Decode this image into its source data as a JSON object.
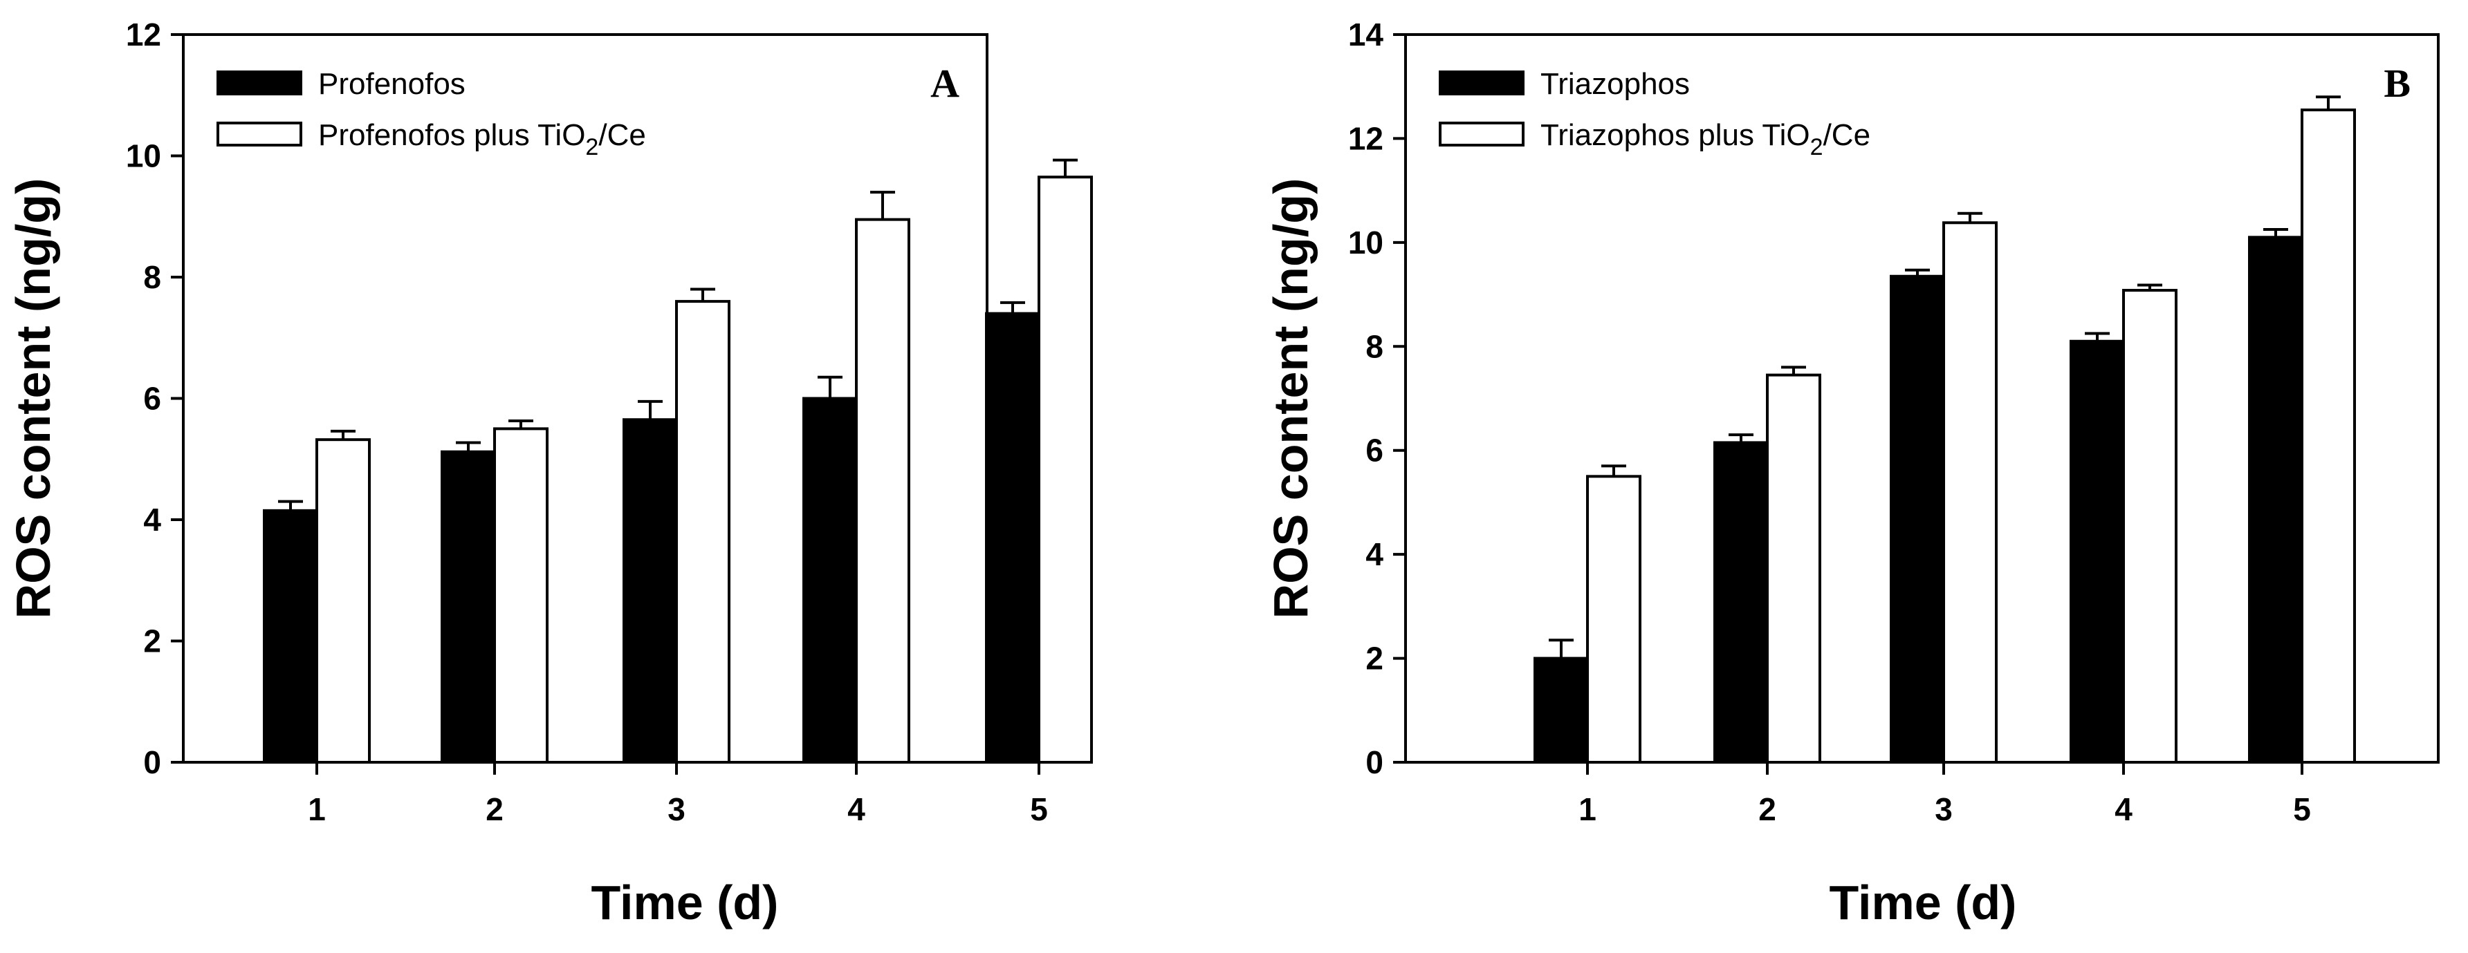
{
  "chart_data": [
    {
      "type": "bar",
      "panel": "A",
      "title": "",
      "xlabel": "Time (d)",
      "ylabel": "ROS content (ng/g)",
      "ylim": [
        0,
        12
      ],
      "yticks": [
        "0",
        "2",
        "4",
        "6",
        "8",
        "10",
        "12"
      ],
      "categories": [
        "1",
        "2",
        "3",
        "4",
        "5"
      ],
      "legend_position": "top-left",
      "series": [
        {
          "name": "Profenofos",
          "color": "#000000",
          "values": [
            4.15,
            5.12,
            5.65,
            6.0,
            7.4
          ],
          "errors": [
            0.15,
            0.15,
            0.3,
            0.35,
            0.18
          ]
        },
        {
          "name": "Profenofos plus TiO2/Ce",
          "legend_main": "Profenofos plus TiO",
          "legend_sub": "2",
          "legend_tail": "/Ce",
          "color": "#ffffff",
          "values": [
            5.32,
            5.5,
            7.6,
            8.95,
            9.65
          ],
          "errors": [
            0.14,
            0.13,
            0.2,
            0.45,
            0.28
          ]
        }
      ]
    },
    {
      "type": "bar",
      "panel": "B",
      "title": "",
      "xlabel": "Time (d)",
      "ylabel": "ROS content (ng/g)",
      "ylim": [
        0,
        14
      ],
      "yticks": [
        "0",
        "2",
        "4",
        "6",
        "8",
        "10",
        "12",
        "14"
      ],
      "categories": [
        "1",
        "2",
        "3",
        "4",
        "5"
      ],
      "legend_position": "top-left",
      "series": [
        {
          "name": "Triazophos",
          "color": "#000000",
          "values": [
            2.0,
            6.15,
            9.35,
            8.1,
            10.1
          ],
          "errors": [
            0.35,
            0.15,
            0.12,
            0.15,
            0.15
          ]
        },
        {
          "name": "Triazophos plus TiO2/Ce",
          "legend_main": "Triazophos plus TiO",
          "legend_sub": "2",
          "legend_tail": "/Ce",
          "color": "#ffffff",
          "values": [
            5.5,
            7.45,
            10.38,
            9.08,
            12.55
          ],
          "errors": [
            0.2,
            0.15,
            0.18,
            0.1,
            0.25
          ]
        }
      ]
    }
  ]
}
